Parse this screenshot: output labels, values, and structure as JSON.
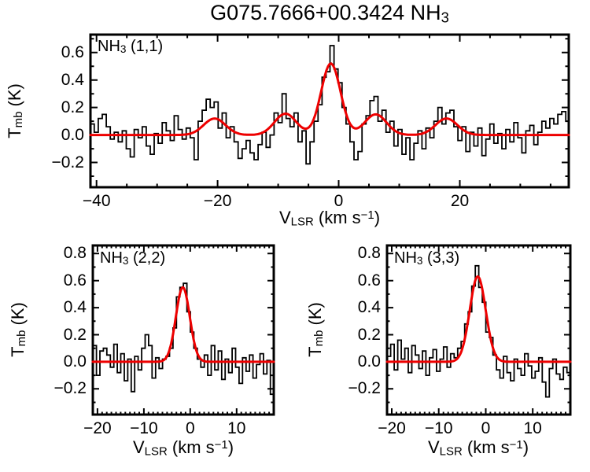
{
  "title": {
    "pre": "G075.7666+00.3424 NH",
    "sub": "3"
  },
  "axis_labels": {
    "x": {
      "base": "V",
      "sub": "LSR",
      "mid": " (km s",
      "sup": "−1",
      "end": ")"
    },
    "y": {
      "base": "T",
      "sub": "mb",
      "end": " (K)"
    }
  },
  "colors": {
    "background": "#ffffff",
    "text": "#000000",
    "data": "#000000",
    "fit": "#ee0000"
  },
  "chart_data": [
    {
      "id": "nh3_11",
      "type": "line",
      "style": "histogram-step with gaussian fit overlay",
      "label": {
        "pre": "NH",
        "sub": "3",
        "post": " (1,1)"
      },
      "xlabel": "V_LSR (km s^-1)",
      "ylabel": "T_mb (K)",
      "xlim": [
        -41,
        38
      ],
      "ylim": [
        -0.38,
        0.73
      ],
      "xticks": [
        -40,
        -20,
        0,
        20
      ],
      "xminor": 5,
      "yticks": [
        -0.2,
        0.0,
        0.2,
        0.4,
        0.6
      ],
      "yminor": 0.1,
      "x_start": -40.7,
      "dx": 0.66,
      "values": [
        0.08,
        0.02,
        0.12,
        0.15,
        0.06,
        -0.03,
        0.02,
        -0.05,
        0.03,
        -0.1,
        -0.16,
        0.04,
        -0.02,
        0.06,
        -0.08,
        -0.14,
        0.01,
        -0.06,
        0.09,
        0.03,
        -0.04,
        0.14,
        0.04,
        -0.03,
        0.05,
        -0.02,
        -0.18,
        0.1,
        0.18,
        0.26,
        0.2,
        0.24,
        0.05,
        0.16,
        -0.02,
        0.06,
        -0.05,
        -0.17,
        -0.1,
        -0.04,
        -0.13,
        -0.18,
        -0.07,
        0.02,
        -0.09,
        0.0,
        0.16,
        0.09,
        0.3,
        0.12,
        0.06,
        0.16,
        -0.05,
        0.03,
        -0.21,
        -0.05,
        0.1,
        0.22,
        0.42,
        0.46,
        0.65,
        0.48,
        0.38,
        0.2,
        0.08,
        -0.05,
        -0.18,
        -0.12,
        0.08,
        0.14,
        0.25,
        0.28,
        0.1,
        0.18,
        0.02,
        0.1,
        -0.08,
        0.04,
        -0.14,
        -0.02,
        -0.18,
        -0.06,
        0.03,
        -0.1,
        0.05,
        -0.02,
        0.1,
        0.2,
        0.08,
        0.16,
        0.18,
        0.06,
        -0.04,
        0.06,
        -0.12,
        0.02,
        -0.08,
        0.05,
        -0.15,
        -0.03,
        0.08,
        -0.06,
        0.01,
        -0.1,
        0.04,
        -0.05,
        0.09,
        -0.02,
        -0.13,
        0.03,
        0.07,
        -0.07,
        0.02,
        0.1,
        0.05,
        0.12,
        0.08,
        0.15,
        0.17,
        0.1
      ],
      "fit_gaussians": [
        {
          "center": -20.5,
          "amp": 0.12,
          "sigma": 1.8
        },
        {
          "center": -8.8,
          "amp": 0.155,
          "sigma": 1.8
        },
        {
          "center": -1.3,
          "amp": 0.52,
          "sigma": 1.6
        },
        {
          "center": 6.1,
          "amp": 0.15,
          "sigma": 1.8
        },
        {
          "center": 17.8,
          "amp": 0.12,
          "sigma": 1.8
        }
      ]
    },
    {
      "id": "nh3_22",
      "type": "line",
      "style": "histogram-step with gaussian fit overlay",
      "label": {
        "pre": "NH",
        "sub": "3",
        "post": " (2,2)"
      },
      "xlabel": "V_LSR (km s^-1)",
      "ylabel": "T_mb (K)",
      "xlim": [
        -21,
        18
      ],
      "ylim": [
        -0.39,
        0.86
      ],
      "xticks": [
        -20,
        -10,
        0,
        10
      ],
      "xminor": 1,
      "yticks": [
        -0.2,
        0.0,
        0.2,
        0.4,
        0.6,
        0.8
      ],
      "yminor": 0.1,
      "x_start": -20.6,
      "dx": 0.75,
      "values": [
        0.12,
        -0.1,
        0.08,
        0.1,
        0.05,
        -0.04,
        0.13,
        -0.08,
        0.06,
        -0.14,
        0.02,
        -0.22,
        0.04,
        -0.06,
        0.1,
        0.2,
        0.12,
        -0.12,
        0.03,
        -0.05,
        0.02,
        0.04,
        0.1,
        0.25,
        0.48,
        0.55,
        0.58,
        0.37,
        0.22,
        0.1,
        0.02,
        -0.04,
        0.05,
        -0.1,
        0.12,
        -0.06,
        0.08,
        -0.13,
        0.02,
        -0.08,
        0.1,
        -0.04,
        -0.16,
        0.03,
        -0.07,
        0.05,
        -0.12,
        -0.02,
        0.06,
        -0.09,
        0.01,
        -0.24
      ],
      "fit_gaussians": [
        {
          "center": -1.6,
          "amp": 0.55,
          "sigma": 1.5
        }
      ]
    },
    {
      "id": "nh3_33",
      "type": "line",
      "style": "histogram-step with gaussian fit overlay",
      "label": {
        "pre": "NH",
        "sub": "3",
        "post": " (3,3)"
      },
      "xlabel": "V_LSR (km s^-1)",
      "ylabel": "T_mb (K)",
      "xlim": [
        -21,
        18
      ],
      "ylim": [
        -0.39,
        0.86
      ],
      "xticks": [
        -20,
        -10,
        0,
        10
      ],
      "xminor": 1,
      "yticks": [
        -0.2,
        0.0,
        0.2,
        0.4,
        0.6,
        0.8
      ],
      "yminor": 0.1,
      "x_start": -20.6,
      "dx": 0.75,
      "values": [
        0.04,
        0.13,
        -0.06,
        0.16,
        0.02,
        0.1,
        -0.08,
        0.12,
        0.05,
        -0.05,
        0.08,
        -0.1,
        0.03,
        0.09,
        -0.07,
        0.02,
        0.11,
        -0.04,
        0.06,
        0.03,
        0.1,
        0.15,
        0.28,
        0.37,
        0.56,
        0.71,
        0.55,
        0.44,
        0.22,
        0.18,
        0.05,
        -0.06,
        -0.12,
        0.04,
        -0.08,
        -0.14,
        0.02,
        -0.05,
        -0.1,
        0.06,
        -0.03,
        -0.12,
        -0.07,
        0.03,
        -0.15,
        -0.26,
        -0.05,
        0.02,
        -0.09,
        -0.13,
        -0.04,
        -0.08
      ],
      "fit_gaussians": [
        {
          "center": -1.7,
          "amp": 0.63,
          "sigma": 1.7
        }
      ]
    }
  ]
}
